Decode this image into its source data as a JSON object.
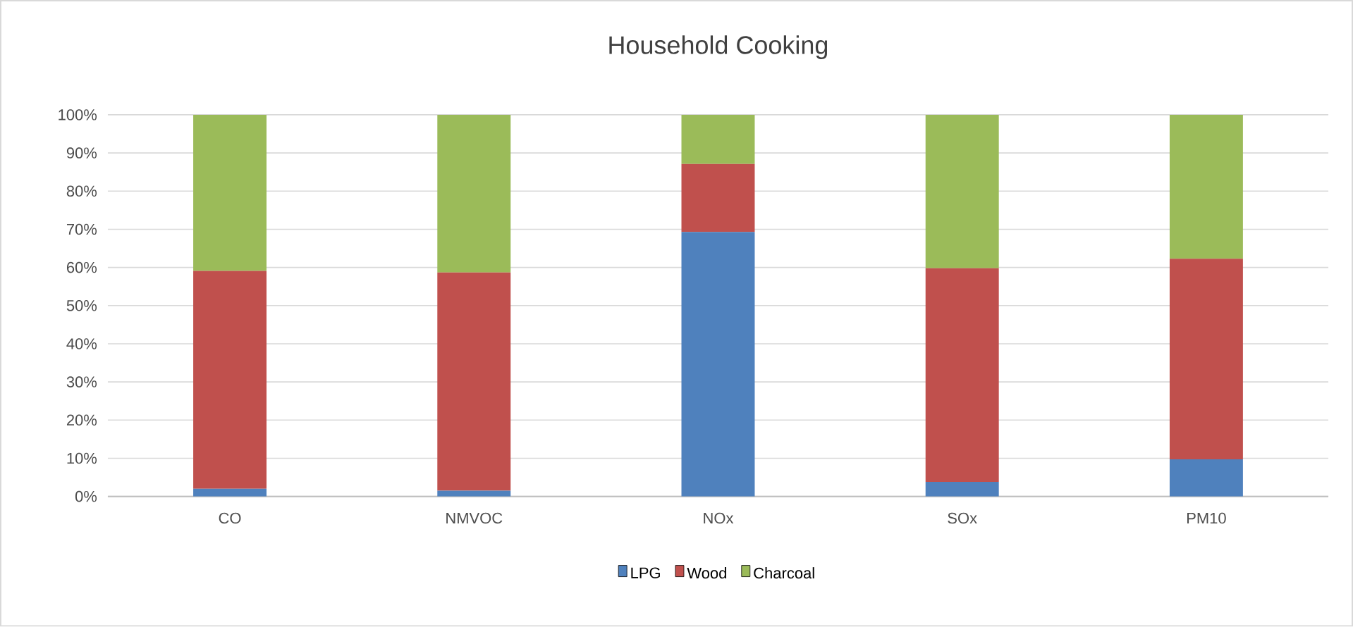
{
  "chart_data": {
    "type": "bar",
    "stacked": true,
    "title": "Household Cooking",
    "categories": [
      "CO",
      "NMVOC",
      "NOx",
      "SOx",
      "PM10"
    ],
    "series": [
      {
        "name": "LPG",
        "color": "#4f81bd",
        "values": [
          2,
          1.5,
          69.3,
          3.8,
          9.7
        ]
      },
      {
        "name": "Wood",
        "color": "#c0504d",
        "values": [
          57.1,
          57.2,
          17.8,
          56,
          52.6
        ]
      },
      {
        "name": "Charcoal",
        "color": "#9bbb59",
        "values": [
          40.9,
          41.3,
          12.9,
          40.2,
          37.7
        ]
      }
    ],
    "ylim": [
      0,
      100
    ],
    "yticks": [
      {
        "value": 0,
        "label": "0%"
      },
      {
        "value": 10,
        "label": "10%"
      },
      {
        "value": 20,
        "label": "20%"
      },
      {
        "value": 30,
        "label": "30%"
      },
      {
        "value": 40,
        "label": "40%"
      },
      {
        "value": 50,
        "label": "50%"
      },
      {
        "value": 60,
        "label": "60%"
      },
      {
        "value": 70,
        "label": "70%"
      },
      {
        "value": 80,
        "label": "80%"
      },
      {
        "value": 90,
        "label": "90%"
      },
      {
        "value": 100,
        "label": "100%"
      }
    ],
    "grid": "y",
    "legend": "bottom"
  }
}
